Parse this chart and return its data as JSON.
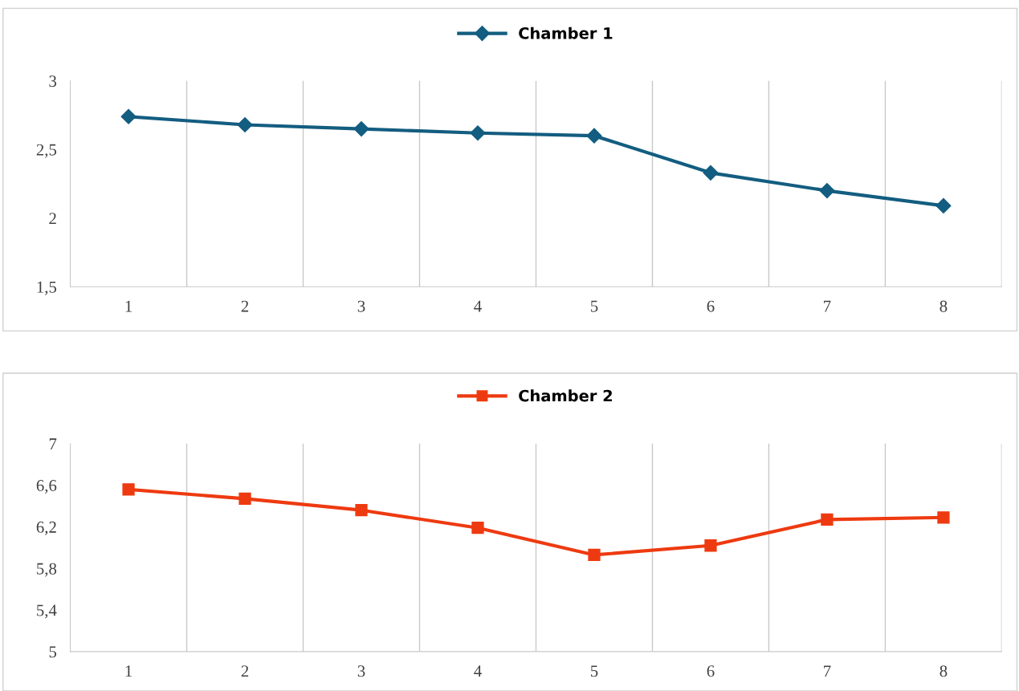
{
  "chart_data": [
    {
      "type": "line",
      "categories": [
        "1",
        "2",
        "3",
        "4",
        "5",
        "6",
        "7",
        "8"
      ],
      "series": [
        {
          "name": "Chamber 1",
          "color": "#135d80",
          "values": [
            2.74,
            2.68,
            2.65,
            2.62,
            2.6,
            2.33,
            2.2,
            2.09
          ]
        }
      ],
      "ylim": [
        1.5,
        3
      ],
      "yticks": [
        {
          "value": 1.5,
          "label": "1,5"
        },
        2,
        {
          "value": 2.5,
          "label": "2,5"
        },
        3
      ],
      "grid": "x",
      "legend": "top",
      "marker": "diamond",
      "line_style": "solid"
    },
    {
      "type": "line",
      "categories": [
        "1",
        "2",
        "3",
        "4",
        "5",
        "6",
        "7",
        "8"
      ],
      "series": [
        {
          "name": "Chamber 2",
          "color": "#ee3a10",
          "values": [
            6.56,
            6.47,
            6.36,
            6.19,
            5.93,
            6.02,
            6.27,
            6.29
          ]
        }
      ],
      "ylim": [
        5,
        7
      ],
      "yticks": [
        5,
        {
          "value": 5.4,
          "label": "5,4"
        },
        {
          "value": 5.8,
          "label": "5,8"
        },
        {
          "value": 6.2,
          "label": "6,2"
        },
        {
          "value": 6.6,
          "label": "6,6"
        },
        7
      ],
      "grid": "x",
      "legend": "top",
      "marker": "square",
      "line_style": "solid"
    }
  ]
}
